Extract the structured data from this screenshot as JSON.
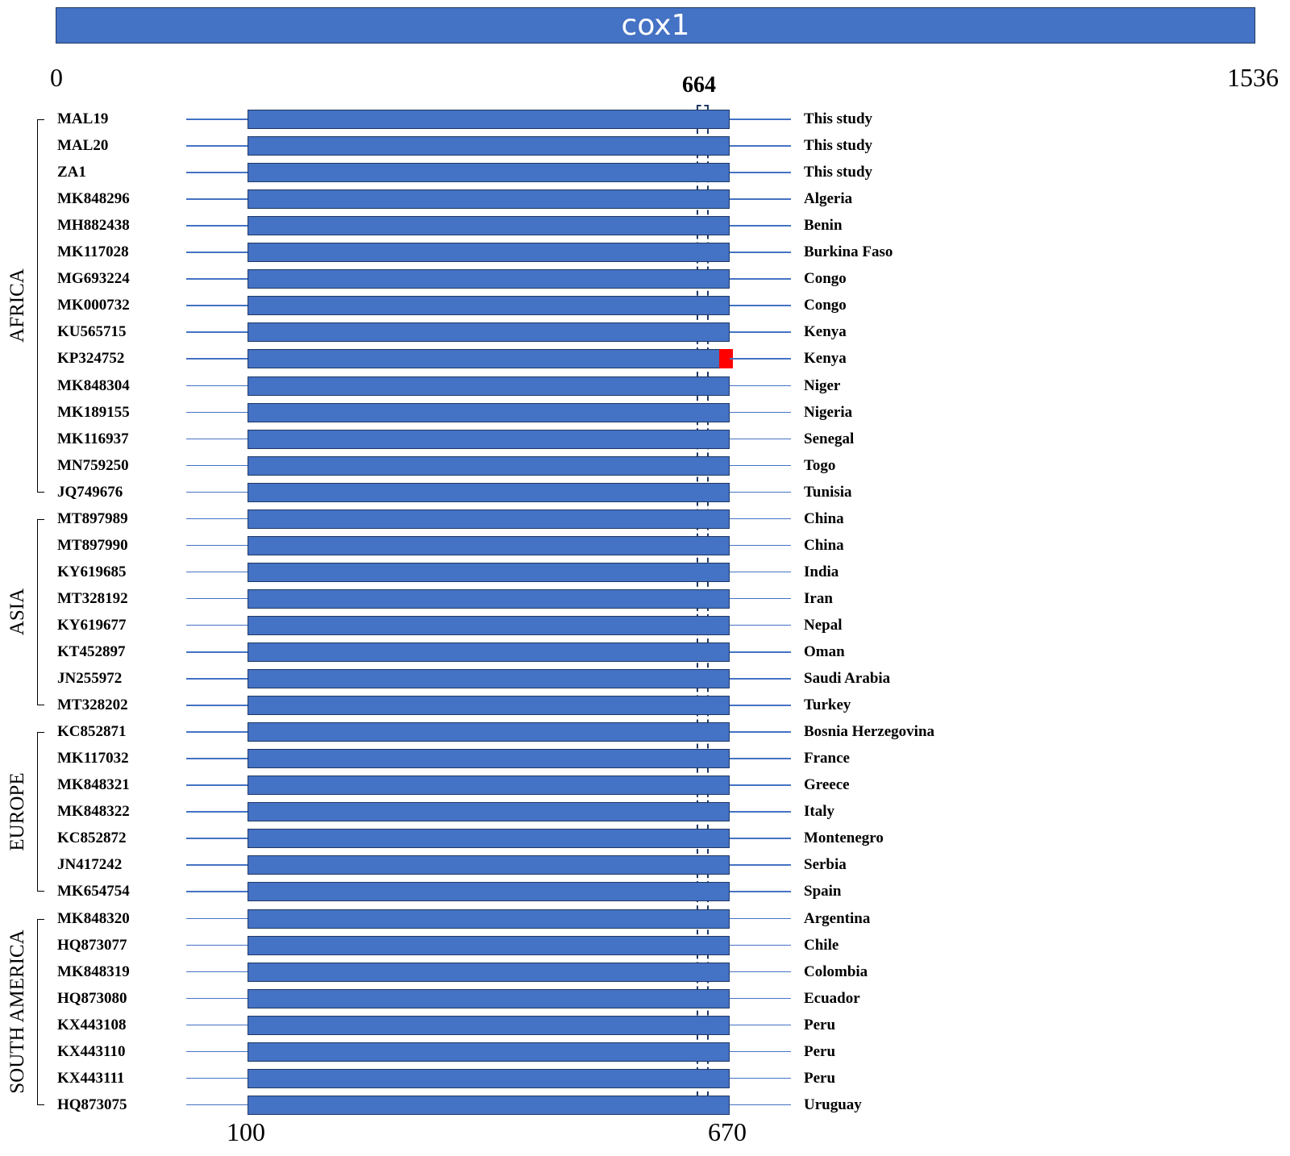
{
  "gene": {
    "name": "cox1",
    "start": "0",
    "end": "1536",
    "color": "#4472c4"
  },
  "fragment": {
    "start": "100",
    "end": "670",
    "mutation_position": "664",
    "mutation_color": "#ff0000"
  },
  "regions": [
    {
      "name": "AFRICA",
      "first": 0,
      "last": 14
    },
    {
      "name": "ASIA",
      "first": 15,
      "last": 22
    },
    {
      "name": "EUROPE",
      "first": 23,
      "last": 29
    },
    {
      "name": "SOUTH AMERICA",
      "first": 30,
      "last": 37
    }
  ],
  "sequences": [
    {
      "accession": "MAL19",
      "origin": "This study",
      "mutated": false
    },
    {
      "accession": "MAL20",
      "origin": "This study",
      "mutated": false
    },
    {
      "accession": "ZA1",
      "origin": "This study",
      "mutated": false
    },
    {
      "accession": "MK848296",
      "origin": "Algeria",
      "mutated": false
    },
    {
      "accession": "MH882438",
      "origin": "Benin",
      "mutated": false
    },
    {
      "accession": "MK117028",
      "origin": "Burkina Faso",
      "mutated": false
    },
    {
      "accession": "MG693224",
      "origin": "Congo",
      "mutated": false
    },
    {
      "accession": "MK000732",
      "origin": "Congo",
      "mutated": false
    },
    {
      "accession": "KU565715",
      "origin": "Kenya",
      "mutated": false
    },
    {
      "accession": "KP324752",
      "origin": "Kenya",
      "mutated": true
    },
    {
      "accession": "MK848304",
      "origin": "Niger",
      "mutated": false
    },
    {
      "accession": "MK189155",
      "origin": "Nigeria",
      "mutated": false
    },
    {
      "accession": "MK116937",
      "origin": "Senegal",
      "mutated": false
    },
    {
      "accession": "MN759250",
      "origin": "Togo",
      "mutated": false
    },
    {
      "accession": "JQ749676",
      "origin": "Tunisia",
      "mutated": false
    },
    {
      "accession": "MT897989",
      "origin": "China",
      "mutated": false
    },
    {
      "accession": "MT897990",
      "origin": "China",
      "mutated": false
    },
    {
      "accession": "KY619685",
      "origin": "India",
      "mutated": false
    },
    {
      "accession": "MT328192",
      "origin": "Iran",
      "mutated": false
    },
    {
      "accession": "KY619677",
      "origin": "Nepal",
      "mutated": false
    },
    {
      "accession": "KT452897",
      "origin": "Oman",
      "mutated": false
    },
    {
      "accession": "JN255972",
      "origin": "Saudi Arabia",
      "mutated": false
    },
    {
      "accession": "MT328202",
      "origin": "Turkey",
      "mutated": false
    },
    {
      "accession": "KC852871",
      "origin": "Bosnia Herzegovina",
      "mutated": false
    },
    {
      "accession": "MK117032",
      "origin": "France",
      "mutated": false
    },
    {
      "accession": "MK848321",
      "origin": "Greece",
      "mutated": false
    },
    {
      "accession": "MK848322",
      "origin": "Italy",
      "mutated": false
    },
    {
      "accession": "KC852872",
      "origin": "Montenegro",
      "mutated": false
    },
    {
      "accession": "JN417242",
      "origin": "Serbia",
      "mutated": false
    },
    {
      "accession": "MK654754",
      "origin": "Spain",
      "mutated": false
    },
    {
      "accession": "MK848320",
      "origin": "Argentina",
      "mutated": false
    },
    {
      "accession": "HQ873077",
      "origin": "Chile",
      "mutated": false
    },
    {
      "accession": "MK848319",
      "origin": "Colombia",
      "mutated": false
    },
    {
      "accession": "HQ873080",
      "origin": "Ecuador",
      "mutated": false
    },
    {
      "accession": "KX443108",
      "origin": "Peru",
      "mutated": false
    },
    {
      "accession": "KX443110",
      "origin": "Peru",
      "mutated": false
    },
    {
      "accession": "KX443111",
      "origin": "Peru",
      "mutated": false
    },
    {
      "accession": "HQ873075",
      "origin": "Uruguay",
      "mutated": false
    }
  ]
}
